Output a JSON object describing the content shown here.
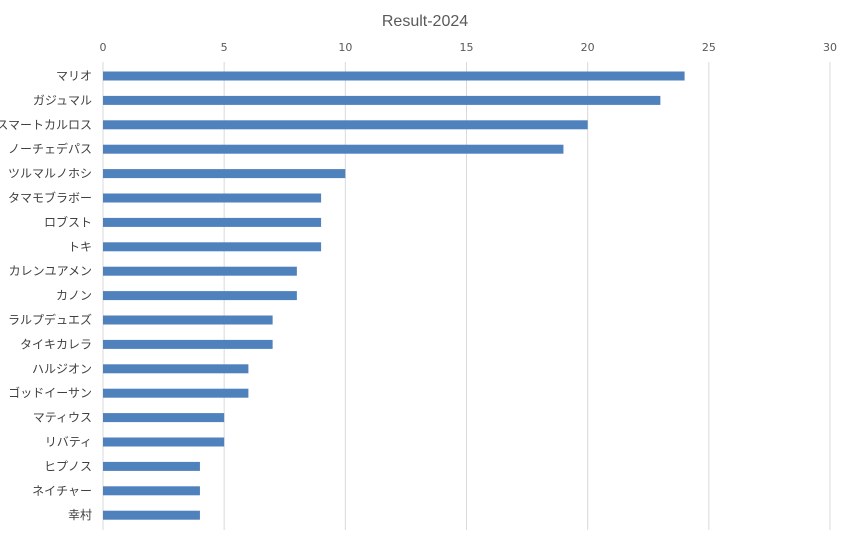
{
  "chart_data": {
    "type": "bar",
    "orientation": "horizontal",
    "title": "Result-2024",
    "xlabel": "",
    "ylabel": "",
    "xlim": [
      0,
      30
    ],
    "ticks": [
      0,
      5,
      10,
      15,
      20,
      25,
      30
    ],
    "axis_position": "top",
    "grid": true,
    "legend": "none",
    "categories": [
      "マリオ",
      "ガジュマル",
      "スマートカルロス",
      "ノーチェデパス",
      "ツルマルノホシ",
      "タマモブラボー",
      "ロブスト",
      "トキ",
      "カレンユアメン",
      "カノン",
      "ラルプデュエズ",
      "タイキカレラ",
      "ハルジオン",
      "ゴッドイーサン",
      "マティウス",
      "リバティ",
      "ヒプノス",
      "ネイチャー",
      "幸村"
    ],
    "values": [
      24,
      23,
      20,
      19,
      10,
      9,
      9,
      9,
      8,
      8,
      7,
      7,
      6,
      6,
      5,
      5,
      4,
      4,
      4
    ],
    "bar_color": "#4f81bd"
  }
}
